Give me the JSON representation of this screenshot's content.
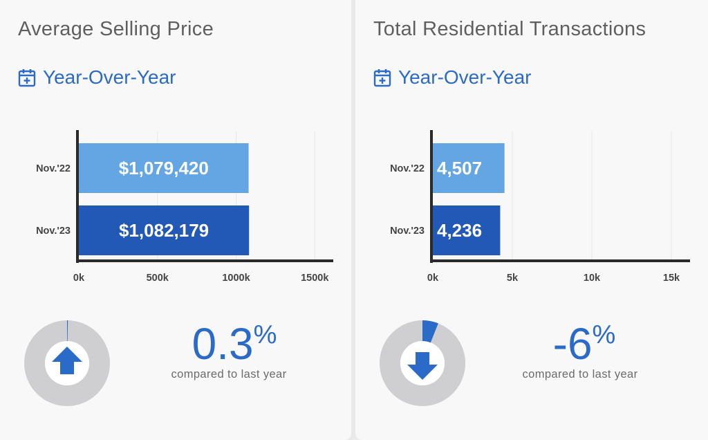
{
  "colors": {
    "bar_prev": "#64a5e3",
    "bar_curr": "#2258b6",
    "accent": "#2a6ac9",
    "ring": "#cfcfd2",
    "axis": "#2a2a2a"
  },
  "panels": [
    {
      "title": "Average Selling Price",
      "period_label": "Year-Over-Year",
      "period_icon": "calendar-plus-icon",
      "change": {
        "value": "0.3",
        "symbol": "%",
        "direction": "up",
        "caption": "compared to last year"
      }
    },
    {
      "title": "Total Residential Transactions",
      "period_label": "Year-Over-Year",
      "period_icon": "calendar-plus-icon",
      "change": {
        "value": "-6",
        "symbol": "%",
        "direction": "down",
        "caption": "compared to last year"
      }
    }
  ],
  "chart_data": [
    {
      "type": "bar",
      "orientation": "horizontal",
      "categories": [
        "Nov.'22",
        "Nov.'23"
      ],
      "values": [
        1079420,
        1082179
      ],
      "value_labels": [
        "$1,079,420",
        "$1,082,179"
      ],
      "xlim": [
        0,
        1600000
      ],
      "xticks": [
        0,
        500000,
        1000000,
        1500000
      ],
      "xtick_labels": [
        "0k",
        "500k",
        "1000k",
        "1500k"
      ],
      "grid": true
    },
    {
      "type": "bar",
      "orientation": "horizontal",
      "categories": [
        "Nov.'22",
        "Nov.'23"
      ],
      "values": [
        4507,
        4236
      ],
      "value_labels": [
        "4,507",
        "4,236"
      ],
      "xlim": [
        0,
        16000
      ],
      "xticks": [
        0,
        5000,
        10000,
        15000
      ],
      "xtick_labels": [
        "0k",
        "5k",
        "10k",
        "15k"
      ],
      "grid": true
    }
  ]
}
